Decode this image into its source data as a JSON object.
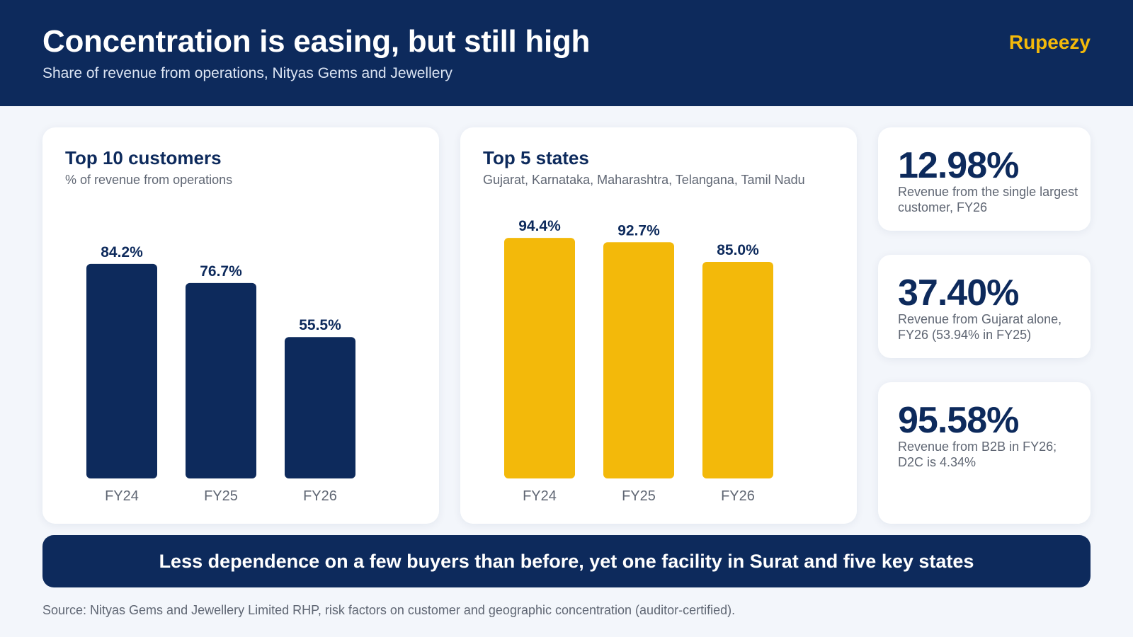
{
  "header": {
    "title": "Concentration is easing, but still high",
    "subtitle": "Share of revenue from operations, Nityas Gems and Jewellery",
    "brand": "Rupeezy"
  },
  "colors": {
    "navy": "#0d2a5c",
    "gold": "#f3b90a",
    "background": "#f3f6fb",
    "muted_text": "#5f6673"
  },
  "chart_data": [
    {
      "type": "bar",
      "title": "Top 10 customers",
      "subtitle": "% of revenue from operations",
      "categories": [
        "FY24",
        "FY25",
        "FY26"
      ],
      "values": [
        84.2,
        76.7,
        55.5
      ],
      "labels": [
        "84.2%",
        "76.7%",
        "55.5%"
      ],
      "unit": "%",
      "ylim": [
        0,
        100
      ],
      "color": "#0d2a5c",
      "grid": false
    },
    {
      "type": "bar",
      "title": "Top 5 states",
      "subtitle": "Gujarat, Karnataka, Maharashtra, Telangana, Tamil Nadu",
      "categories": [
        "FY24",
        "FY25",
        "FY26"
      ],
      "values": [
        94.4,
        92.7,
        85.0
      ],
      "labels": [
        "94.4%",
        "92.7%",
        "85.0%"
      ],
      "unit": "%",
      "ylim": [
        0,
        100
      ],
      "color": "#f3b90a",
      "grid": false
    }
  ],
  "stats": [
    {
      "value": "12.98%",
      "description": "Revenue from the single largest customer, FY26"
    },
    {
      "value": "37.40%",
      "description": "Revenue from Gujarat alone, FY26 (53.94% in FY25)"
    },
    {
      "value": "95.58%",
      "description": "Revenue from B2B in FY26; D2C is 4.34%"
    }
  ],
  "banner": "Less dependence on a few buyers than before, yet one facility in Surat and five key states",
  "source": "Source: Nityas Gems and Jewellery Limited RHP, risk factors on customer and geographic concentration (auditor-certified)."
}
